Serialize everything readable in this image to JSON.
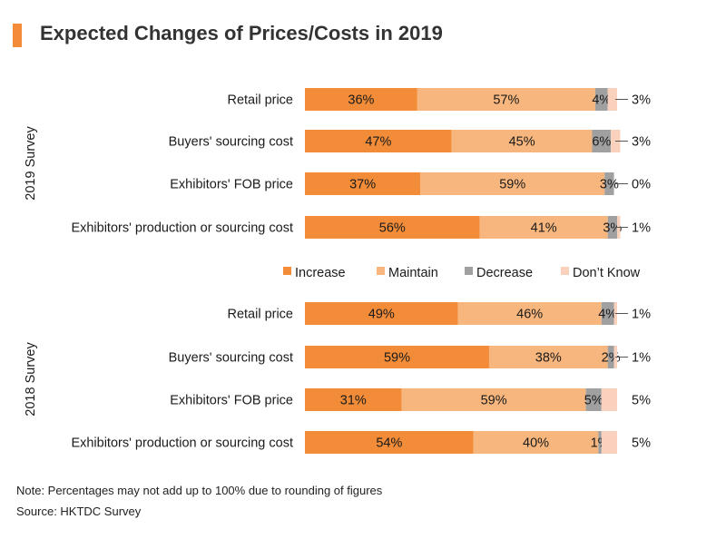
{
  "title": "Expected Changes of Prices/Costs in 2019",
  "note": "Note: Percentages may not add up to 100% due to rounding of figures",
  "source": "Source: HKTDC Survey",
  "colors": {
    "accent": "#f28c38",
    "increase": "#f28c38",
    "maintain": "#f7b67d",
    "decrease": "#a0a0a0",
    "dont_know": "#f9d1bd"
  },
  "chart_data": {
    "type": "bar",
    "orientation": "horizontal",
    "stacked": true,
    "xlim": [
      0,
      100
    ],
    "legend": {
      "position": "middle",
      "entries": [
        "Increase",
        "Maintain",
        "Decrease",
        "Don’t Know"
      ]
    },
    "groups": [
      {
        "name": "2019 Survey",
        "categories": [
          "Retail price",
          "Buyers' sourcing cost",
          "Exhibitors' FOB price",
          "Exhibitors' production or sourcing cost"
        ],
        "series": [
          {
            "name": "Increase",
            "values": [
              36,
              47,
              37,
              56
            ]
          },
          {
            "name": "Maintain",
            "values": [
              57,
              45,
              59,
              41
            ]
          },
          {
            "name": "Decrease",
            "values": [
              4,
              6,
              3,
              3
            ]
          },
          {
            "name": "Don’t Know",
            "values": [
              3,
              3,
              0,
              1
            ]
          }
        ]
      },
      {
        "name": "2018 Survey",
        "categories": [
          "Retail price",
          "Buyers' sourcing cost",
          "Exhibitors' FOB price",
          "Exhibitors' production or sourcing cost"
        ],
        "series": [
          {
            "name": "Increase",
            "values": [
              49,
              59,
              31,
              54
            ]
          },
          {
            "name": "Maintain",
            "values": [
              46,
              38,
              59,
              40
            ]
          },
          {
            "name": "Decrease",
            "values": [
              4,
              2,
              5,
              1
            ]
          },
          {
            "name": "Don’t Know",
            "values": [
              1,
              1,
              5,
              5
            ]
          }
        ]
      }
    ]
  }
}
